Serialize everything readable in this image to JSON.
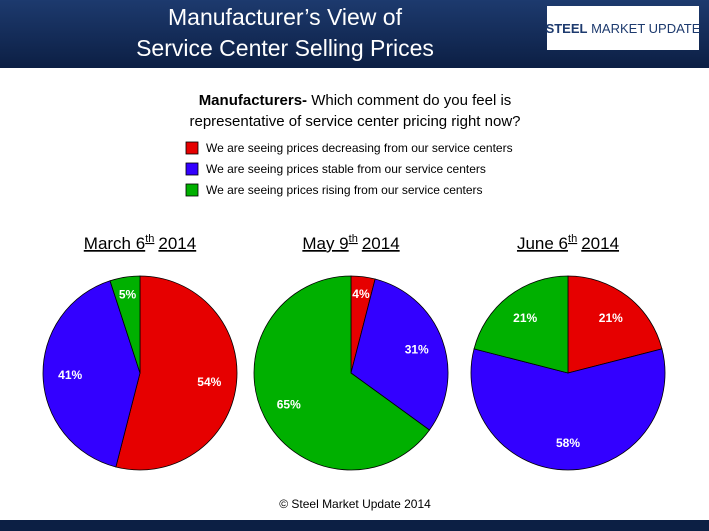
{
  "slide": {
    "title_lines": [
      "Manufacturer’s View of",
      "Service Center Selling Prices"
    ],
    "logo": {
      "bold": "STEEL",
      "rest": "MARKET UPDATE"
    },
    "question": {
      "lead": "Manufacturers-",
      "line1": "Which comment do you feel is",
      "line2": "representative of service center pricing right now?"
    },
    "footer": "© Steel Market Update 2014"
  },
  "legend": {
    "items": [
      {
        "label": "We are seeing prices decreasing from our service centers",
        "color": "#e60000"
      },
      {
        "label": "We are seeing prices stable from our service centers",
        "color": "#3300ff"
      },
      {
        "label": "We are seeing prices rising from our service centers",
        "color": "#00b000"
      }
    ]
  },
  "chart_data": [
    {
      "type": "pie",
      "title_parts": [
        "March 6",
        "th",
        "2014"
      ],
      "values": [
        54,
        41,
        5
      ],
      "value_labels": [
        "54%",
        "41%",
        "5%"
      ]
    },
    {
      "type": "pie",
      "title_parts": [
        "May 9",
        "th",
        "2014"
      ],
      "values": [
        4,
        31,
        65
      ],
      "value_labels": [
        "4%",
        "31%",
        "65%"
      ]
    },
    {
      "type": "pie",
      "title_parts": [
        "June 6",
        "th",
        "2014"
      ],
      "values": [
        21,
        58,
        21
      ],
      "value_labels": [
        "21%",
        "58%",
        "21%"
      ]
    }
  ]
}
